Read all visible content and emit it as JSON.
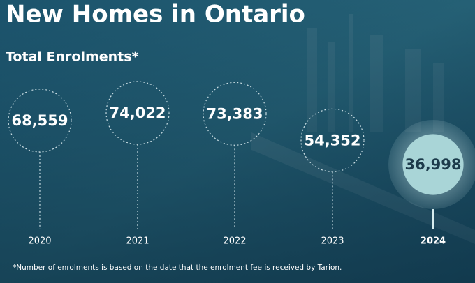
{
  "chart_data": {
    "type": "lollipop",
    "title": "New Homes in Ontario",
    "subtitle": "Total Enrolments*",
    "categories": [
      "2020",
      "2021",
      "2022",
      "2023",
      "2024"
    ],
    "values": [
      68559,
      74022,
      73383,
      54352,
      36998
    ],
    "value_labels": [
      "68,559",
      "74,022",
      "73,383",
      "54,352",
      "36,998"
    ],
    "colors": [
      "none",
      "none",
      "none",
      "none",
      "#a9d5d7"
    ],
    "note": "*Number of enrolments is based on the date that the enrolment fee is received by Tarion."
  }
}
